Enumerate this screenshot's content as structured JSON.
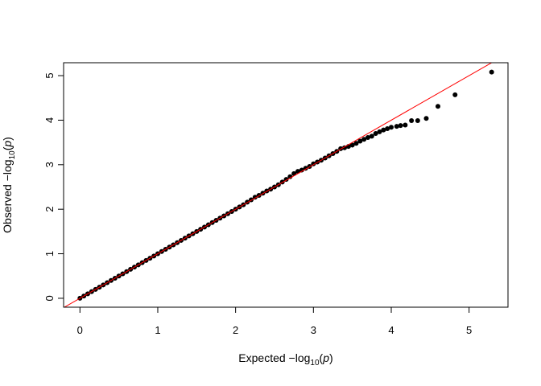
{
  "chart_data": {
    "type": "scatter",
    "title": "",
    "xlabel": {
      "prefix": "Expected  −log",
      "sub": "10",
      "open": "(",
      "var": "p",
      "close": ")"
    },
    "ylabel": {
      "prefix": "Observed  −log",
      "sub": "10",
      "open": "(",
      "var": "p",
      "close": ")"
    },
    "xlim": [
      -0.21,
      5.5
    ],
    "ylim": [
      -0.2,
      5.29
    ],
    "xticks": [
      "0",
      "1",
      "2",
      "3",
      "4",
      "5"
    ],
    "yticks": [
      "0",
      "1",
      "2",
      "3",
      "4",
      "5"
    ],
    "grid": false,
    "reference_line": {
      "type": "y=x",
      "color": "#ff0000"
    },
    "point_color": "#000000",
    "points": [
      [
        0.0,
        0.0
      ],
      [
        0.05,
        0.05
      ],
      [
        0.1,
        0.1
      ],
      [
        0.15,
        0.15
      ],
      [
        0.2,
        0.2
      ],
      [
        0.25,
        0.25
      ],
      [
        0.3,
        0.3
      ],
      [
        0.35,
        0.35
      ],
      [
        0.4,
        0.4
      ],
      [
        0.45,
        0.45
      ],
      [
        0.5,
        0.5
      ],
      [
        0.55,
        0.55
      ],
      [
        0.6,
        0.6
      ],
      [
        0.65,
        0.65
      ],
      [
        0.7,
        0.7
      ],
      [
        0.75,
        0.75
      ],
      [
        0.8,
        0.8
      ],
      [
        0.85,
        0.85
      ],
      [
        0.9,
        0.9
      ],
      [
        0.95,
        0.95
      ],
      [
        1.0,
        1.0
      ],
      [
        1.05,
        1.05
      ],
      [
        1.1,
        1.1
      ],
      [
        1.15,
        1.15
      ],
      [
        1.2,
        1.2
      ],
      [
        1.25,
        1.25
      ],
      [
        1.3,
        1.3
      ],
      [
        1.35,
        1.35
      ],
      [
        1.4,
        1.4
      ],
      [
        1.45,
        1.45
      ],
      [
        1.5,
        1.5
      ],
      [
        1.55,
        1.55
      ],
      [
        1.6,
        1.6
      ],
      [
        1.65,
        1.65
      ],
      [
        1.7,
        1.7
      ],
      [
        1.75,
        1.75
      ],
      [
        1.8,
        1.8
      ],
      [
        1.85,
        1.85
      ],
      [
        1.9,
        1.9
      ],
      [
        1.95,
        1.95
      ],
      [
        2.0,
        2.0
      ],
      [
        2.05,
        2.05
      ],
      [
        2.1,
        2.1
      ],
      [
        2.15,
        2.16
      ],
      [
        2.2,
        2.21
      ],
      [
        2.25,
        2.27
      ],
      [
        2.3,
        2.31
      ],
      [
        2.35,
        2.36
      ],
      [
        2.4,
        2.41
      ],
      [
        2.45,
        2.45
      ],
      [
        2.5,
        2.5
      ],
      [
        2.55,
        2.55
      ],
      [
        2.6,
        2.61
      ],
      [
        2.65,
        2.67
      ],
      [
        2.7,
        2.73
      ],
      [
        2.75,
        2.8
      ],
      [
        2.8,
        2.85
      ],
      [
        2.85,
        2.88
      ],
      [
        2.9,
        2.92
      ],
      [
        2.95,
        2.96
      ],
      [
        3.0,
        3.02
      ],
      [
        3.05,
        3.06
      ],
      [
        3.1,
        3.1
      ],
      [
        3.15,
        3.15
      ],
      [
        3.2,
        3.2
      ],
      [
        3.25,
        3.25
      ],
      [
        3.3,
        3.3
      ],
      [
        3.35,
        3.36
      ],
      [
        3.4,
        3.38
      ],
      [
        3.45,
        3.41
      ],
      [
        3.5,
        3.44
      ],
      [
        3.55,
        3.48
      ],
      [
        3.6,
        3.53
      ],
      [
        3.65,
        3.57
      ],
      [
        3.7,
        3.61
      ],
      [
        3.75,
        3.64
      ],
      [
        3.8,
        3.7
      ],
      [
        3.85,
        3.74
      ],
      [
        3.9,
        3.78
      ],
      [
        3.95,
        3.81
      ],
      [
        4.0,
        3.84
      ],
      [
        4.07,
        3.86
      ],
      [
        4.12,
        3.88
      ],
      [
        4.18,
        3.89
      ],
      [
        4.26,
        3.99
      ],
      [
        4.34,
        3.99
      ],
      [
        4.45,
        4.04
      ],
      [
        4.6,
        4.31
      ],
      [
        4.82,
        4.57
      ],
      [
        5.29,
        5.08
      ]
    ]
  }
}
